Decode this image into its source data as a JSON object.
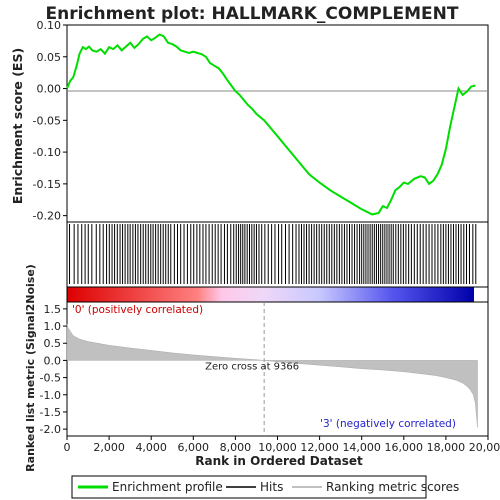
{
  "chart_data": {
    "type": "line",
    "title": "Enrichment plot: HALLMARK_COMPLEMENT",
    "xlabel": "Rank in Ordered Dataset",
    "top_panel": {
      "ylabel": "Enrichment score (ES)",
      "xlim": [
        0,
        20000
      ],
      "ylim": [
        -0.21,
        0.1
      ],
      "yticks": [
        0.1,
        0.05,
        0.0,
        -0.05,
        -0.1,
        -0.15,
        -0.2
      ],
      "ytick_labels": [
        "0.10",
        "0.05",
        "0.00",
        "-0.05",
        "-0.10",
        "-0.15",
        "-0.20"
      ],
      "series": [
        {
          "name": "Enrichment profile",
          "color": "#00dd00",
          "x": [
            0,
            150,
            300,
            450,
            600,
            750,
            900,
            1050,
            1200,
            1400,
            1600,
            1800,
            2000,
            2200,
            2400,
            2600,
            2800,
            3000,
            3200,
            3400,
            3600,
            3800,
            4000,
            4200,
            4400,
            4600,
            4800,
            5000,
            5200,
            5400,
            5600,
            5800,
            6000,
            6200,
            6400,
            6600,
            6800,
            7000,
            7200,
            7400,
            7600,
            7800,
            8000,
            8200,
            8400,
            8600,
            8800,
            9000,
            9366,
            10000,
            10500,
            11000,
            11500,
            12000,
            12500,
            13000,
            13500,
            14000,
            14500,
            14800,
            15000,
            15200,
            15400,
            15600,
            15800,
            16000,
            16200,
            16500,
            16800,
            17000,
            17200,
            17400,
            17600,
            17800,
            18000,
            18200,
            18400,
            18600,
            18800,
            19000,
            19200,
            19400
          ],
          "y": [
            0.0,
            0.012,
            0.018,
            0.035,
            0.055,
            0.065,
            0.062,
            0.066,
            0.06,
            0.058,
            0.062,
            0.055,
            0.065,
            0.062,
            0.068,
            0.06,
            0.066,
            0.072,
            0.064,
            0.07,
            0.078,
            0.082,
            0.076,
            0.08,
            0.085,
            0.082,
            0.072,
            0.07,
            0.066,
            0.06,
            0.058,
            0.056,
            0.058,
            0.056,
            0.054,
            0.05,
            0.04,
            0.036,
            0.032,
            0.024,
            0.014,
            0.005,
            -0.004,
            -0.01,
            -0.018,
            -0.026,
            -0.032,
            -0.04,
            -0.05,
            -0.075,
            -0.095,
            -0.115,
            -0.135,
            -0.148,
            -0.16,
            -0.17,
            -0.18,
            -0.19,
            -0.198,
            -0.196,
            -0.185,
            -0.188,
            -0.175,
            -0.16,
            -0.155,
            -0.148,
            -0.15,
            -0.142,
            -0.138,
            -0.14,
            -0.15,
            -0.145,
            -0.135,
            -0.12,
            -0.095,
            -0.06,
            -0.03,
            0.0,
            -0.01,
            -0.005,
            0.003,
            0.005
          ]
        }
      ]
    },
    "hits_panel": {
      "legend_label": "Hits",
      "hit_ranks": [
        120,
        340,
        520,
        700,
        860,
        1010,
        1180,
        1390,
        1560,
        1720,
        1880,
        2010,
        2140,
        2260,
        2390,
        2520,
        2640,
        2760,
        2890,
        3000,
        3130,
        3250,
        3370,
        3500,
        3620,
        3740,
        3860,
        3980,
        4090,
        4210,
        4330,
        4450,
        4570,
        4690,
        4810,
        4930,
        5100,
        5250,
        5400,
        5560,
        5720,
        5880,
        6020,
        6170,
        6310,
        6460,
        6600,
        6750,
        6900,
        7040,
        7180,
        7320,
        7480,
        7620,
        7780,
        7920,
        8040,
        8150,
        8250,
        8350,
        8450,
        8560,
        8670,
        8780,
        8890,
        9000,
        9120,
        9250,
        9400,
        9560,
        9720,
        9880,
        10050,
        10200,
        10380,
        10550,
        10720,
        10880,
        11020,
        11140,
        11260,
        11380,
        11500,
        11620,
        11740,
        11860,
        11980,
        12100,
        12220,
        12340,
        12460,
        12580,
        12700,
        12820,
        12940,
        13060,
        13180,
        13300,
        13420,
        13540,
        13660,
        13780,
        13900,
        14000,
        14100,
        14200,
        14300,
        14400,
        14500,
        14600,
        14700,
        14800,
        14900,
        15000,
        15100,
        15200,
        15300,
        15400,
        15500,
        15620,
        15740,
        15860,
        15980,
        16100,
        16230,
        16360,
        16500,
        16640,
        16780,
        16920,
        17060,
        17200,
        17340,
        17480,
        17620,
        17760,
        17880,
        18000,
        18120,
        18240,
        18360,
        18480,
        18600,
        18720,
        18850,
        18980,
        19120,
        19280,
        19420
      ]
    },
    "rank_panel": {
      "ylabel": "Ranked list metric (Signal2Noise)",
      "xlim": [
        0,
        20000
      ],
      "ylim": [
        -2.2,
        1.7
      ],
      "yticks": [
        1.5,
        1.0,
        0.5,
        0.0,
        -0.5,
        -1.0,
        -1.5,
        -2.0
      ],
      "ytick_labels": [
        "1.5",
        "1.0",
        "0.5",
        "0.0",
        "-0.5",
        "-1.0",
        "-1.5",
        "-2.0"
      ],
      "series": [
        {
          "name": "Ranking metric scores",
          "color": "#c0c0c0",
          "x": [
            0,
            50,
            150,
            300,
            600,
            1000,
            2000,
            3000,
            4000,
            5000,
            6000,
            7000,
            8000,
            9000,
            9366,
            10000,
            11000,
            12000,
            13000,
            14000,
            15000,
            16000,
            17000,
            17500,
            18000,
            18500,
            18800,
            19000,
            19150,
            19300,
            19400,
            19450,
            19500
          ],
          "y": [
            1.05,
            0.95,
            0.85,
            0.72,
            0.62,
            0.55,
            0.44,
            0.36,
            0.29,
            0.22,
            0.16,
            0.11,
            0.06,
            0.02,
            0.0,
            -0.04,
            -0.09,
            -0.14,
            -0.19,
            -0.24,
            -0.28,
            -0.33,
            -0.4,
            -0.44,
            -0.5,
            -0.58,
            -0.66,
            -0.75,
            -0.85,
            -1.0,
            -1.25,
            -1.6,
            -1.95
          ]
        }
      ],
      "annotations": {
        "zero_cross": "Zero cross at 9366",
        "zero_cross_rank": 9366,
        "positive_label": "'0' (positively correlated)",
        "negative_label": "'3' (negatively correlated)",
        "positive_color": "#ff0000",
        "negative_color": "#0000cc"
      }
    },
    "xticks": [
      0,
      2000,
      4000,
      6000,
      8000,
      10000,
      12000,
      14000,
      16000,
      18000,
      20000
    ],
    "xtick_labels": [
      "0",
      "2,000",
      "4,000",
      "6,000",
      "8,000",
      "10,000",
      "12,000",
      "14,000",
      "16,000",
      "18,000",
      "20,000"
    ],
    "legend": {
      "placement": "bottom",
      "entries": [
        {
          "label": "Enrichment profile",
          "color": "#00dd00"
        },
        {
          "label": "Hits",
          "color": "#000000"
        },
        {
          "label": "Ranking metric scores",
          "color": "#c0c0c0"
        }
      ]
    },
    "grid": false
  }
}
